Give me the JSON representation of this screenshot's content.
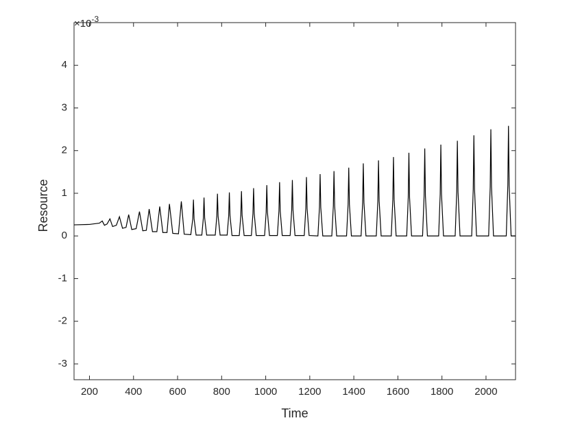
{
  "chart_data": {
    "type": "line",
    "xlabel": "Time",
    "ylabel": "Resource",
    "y_exponent_base": "×10",
    "y_exponent_power": "-3",
    "xlim": [
      130,
      2134
    ],
    "ylim": [
      -3.37,
      5
    ],
    "xticks": [
      200,
      400,
      600,
      800,
      1000,
      1200,
      1400,
      1600,
      1800,
      2000
    ],
    "yticks": [
      -3,
      -2,
      -1,
      0,
      1,
      2,
      3,
      4
    ],
    "series": [
      {
        "color": "#000000",
        "x": [
          130,
          200,
          230,
          245,
          258,
          268,
          280,
          293,
          305,
          322,
          336,
          350,
          366,
          378,
          392,
          412,
          427,
          442,
          458,
          471,
          486,
          506,
          519,
          533,
          552,
          563,
          578,
          604,
          617,
          630,
          660,
          669,
          672,
          675,
          684,
          710,
          717,
          720,
          723,
          732,
          771,
          778,
          781,
          784,
          793,
          825,
          832,
          835,
          838,
          847,
          880,
          887,
          890,
          893,
          902,
          935,
          942,
          945,
          948,
          957,
          995,
          1002,
          1005,
          1008,
          1017,
          1053,
          1060,
          1063,
          1066,
          1075,
          1111,
          1118,
          1121,
          1124,
          1133,
          1175,
          1182,
          1185,
          1188,
          1197,
          1237,
          1244,
          1247,
          1250,
          1259,
          1300,
          1307,
          1310,
          1313,
          1322,
          1367,
          1374,
          1377,
          1380,
          1389,
          1433,
          1440,
          1443,
          1446,
          1455,
          1502,
          1509,
          1512,
          1515,
          1524,
          1570,
          1577,
          1580,
          1583,
          1592,
          1640,
          1647,
          1650,
          1653,
          1662,
          1712,
          1719,
          1722,
          1725,
          1734,
          1785,
          1792,
          1795,
          1798,
          1807,
          1860,
          1867,
          1870,
          1873,
          1882,
          1935,
          1942,
          1945,
          1948,
          1957,
          2012,
          2019,
          2022,
          2025,
          2034,
          2092,
          2099,
          2102,
          2105,
          2114,
          2134
        ],
        "values": [
          0.26,
          0.27,
          0.29,
          0.3,
          0.35,
          0.25,
          0.28,
          0.4,
          0.22,
          0.25,
          0.45,
          0.18,
          0.2,
          0.5,
          0.15,
          0.17,
          0.57,
          0.12,
          0.13,
          0.63,
          0.1,
          0.1,
          0.69,
          0.08,
          0.08,
          0.75,
          0.06,
          0.05,
          0.81,
          0.04,
          0.03,
          0.4,
          0.85,
          0.4,
          0.02,
          0.02,
          0.42,
          0.9,
          0.42,
          0.02,
          0.02,
          0.46,
          0.99,
          0.46,
          0.02,
          0.02,
          0.47,
          1.02,
          0.47,
          0.01,
          0.01,
          0.48,
          1.05,
          0.48,
          0.01,
          0.01,
          0.52,
          1.12,
          0.52,
          0.01,
          0.01,
          0.55,
          1.19,
          0.55,
          0.01,
          0.01,
          0.58,
          1.26,
          0.58,
          0.01,
          0.01,
          0.6,
          1.31,
          0.6,
          0.01,
          0.01,
          0.64,
          1.38,
          0.64,
          0.01,
          0,
          0.67,
          1.45,
          0.67,
          0,
          0,
          0.7,
          1.52,
          0.7,
          0,
          0,
          0.74,
          1.6,
          0.74,
          0,
          0,
          0.78,
          1.7,
          0.78,
          0,
          0,
          0.82,
          1.77,
          0.82,
          0,
          0,
          0.85,
          1.85,
          0.85,
          0,
          0,
          0.9,
          1.95,
          0.9,
          0,
          0,
          0.94,
          2.05,
          0.94,
          0,
          0,
          0.98,
          2.14,
          0.98,
          0,
          0,
          1.03,
          2.23,
          1.03,
          0,
          0,
          1.09,
          2.36,
          1.09,
          0,
          0,
          1.15,
          2.5,
          1.15,
          0,
          0,
          1.19,
          2.58,
          1.19,
          0,
          0
        ]
      }
    ]
  }
}
